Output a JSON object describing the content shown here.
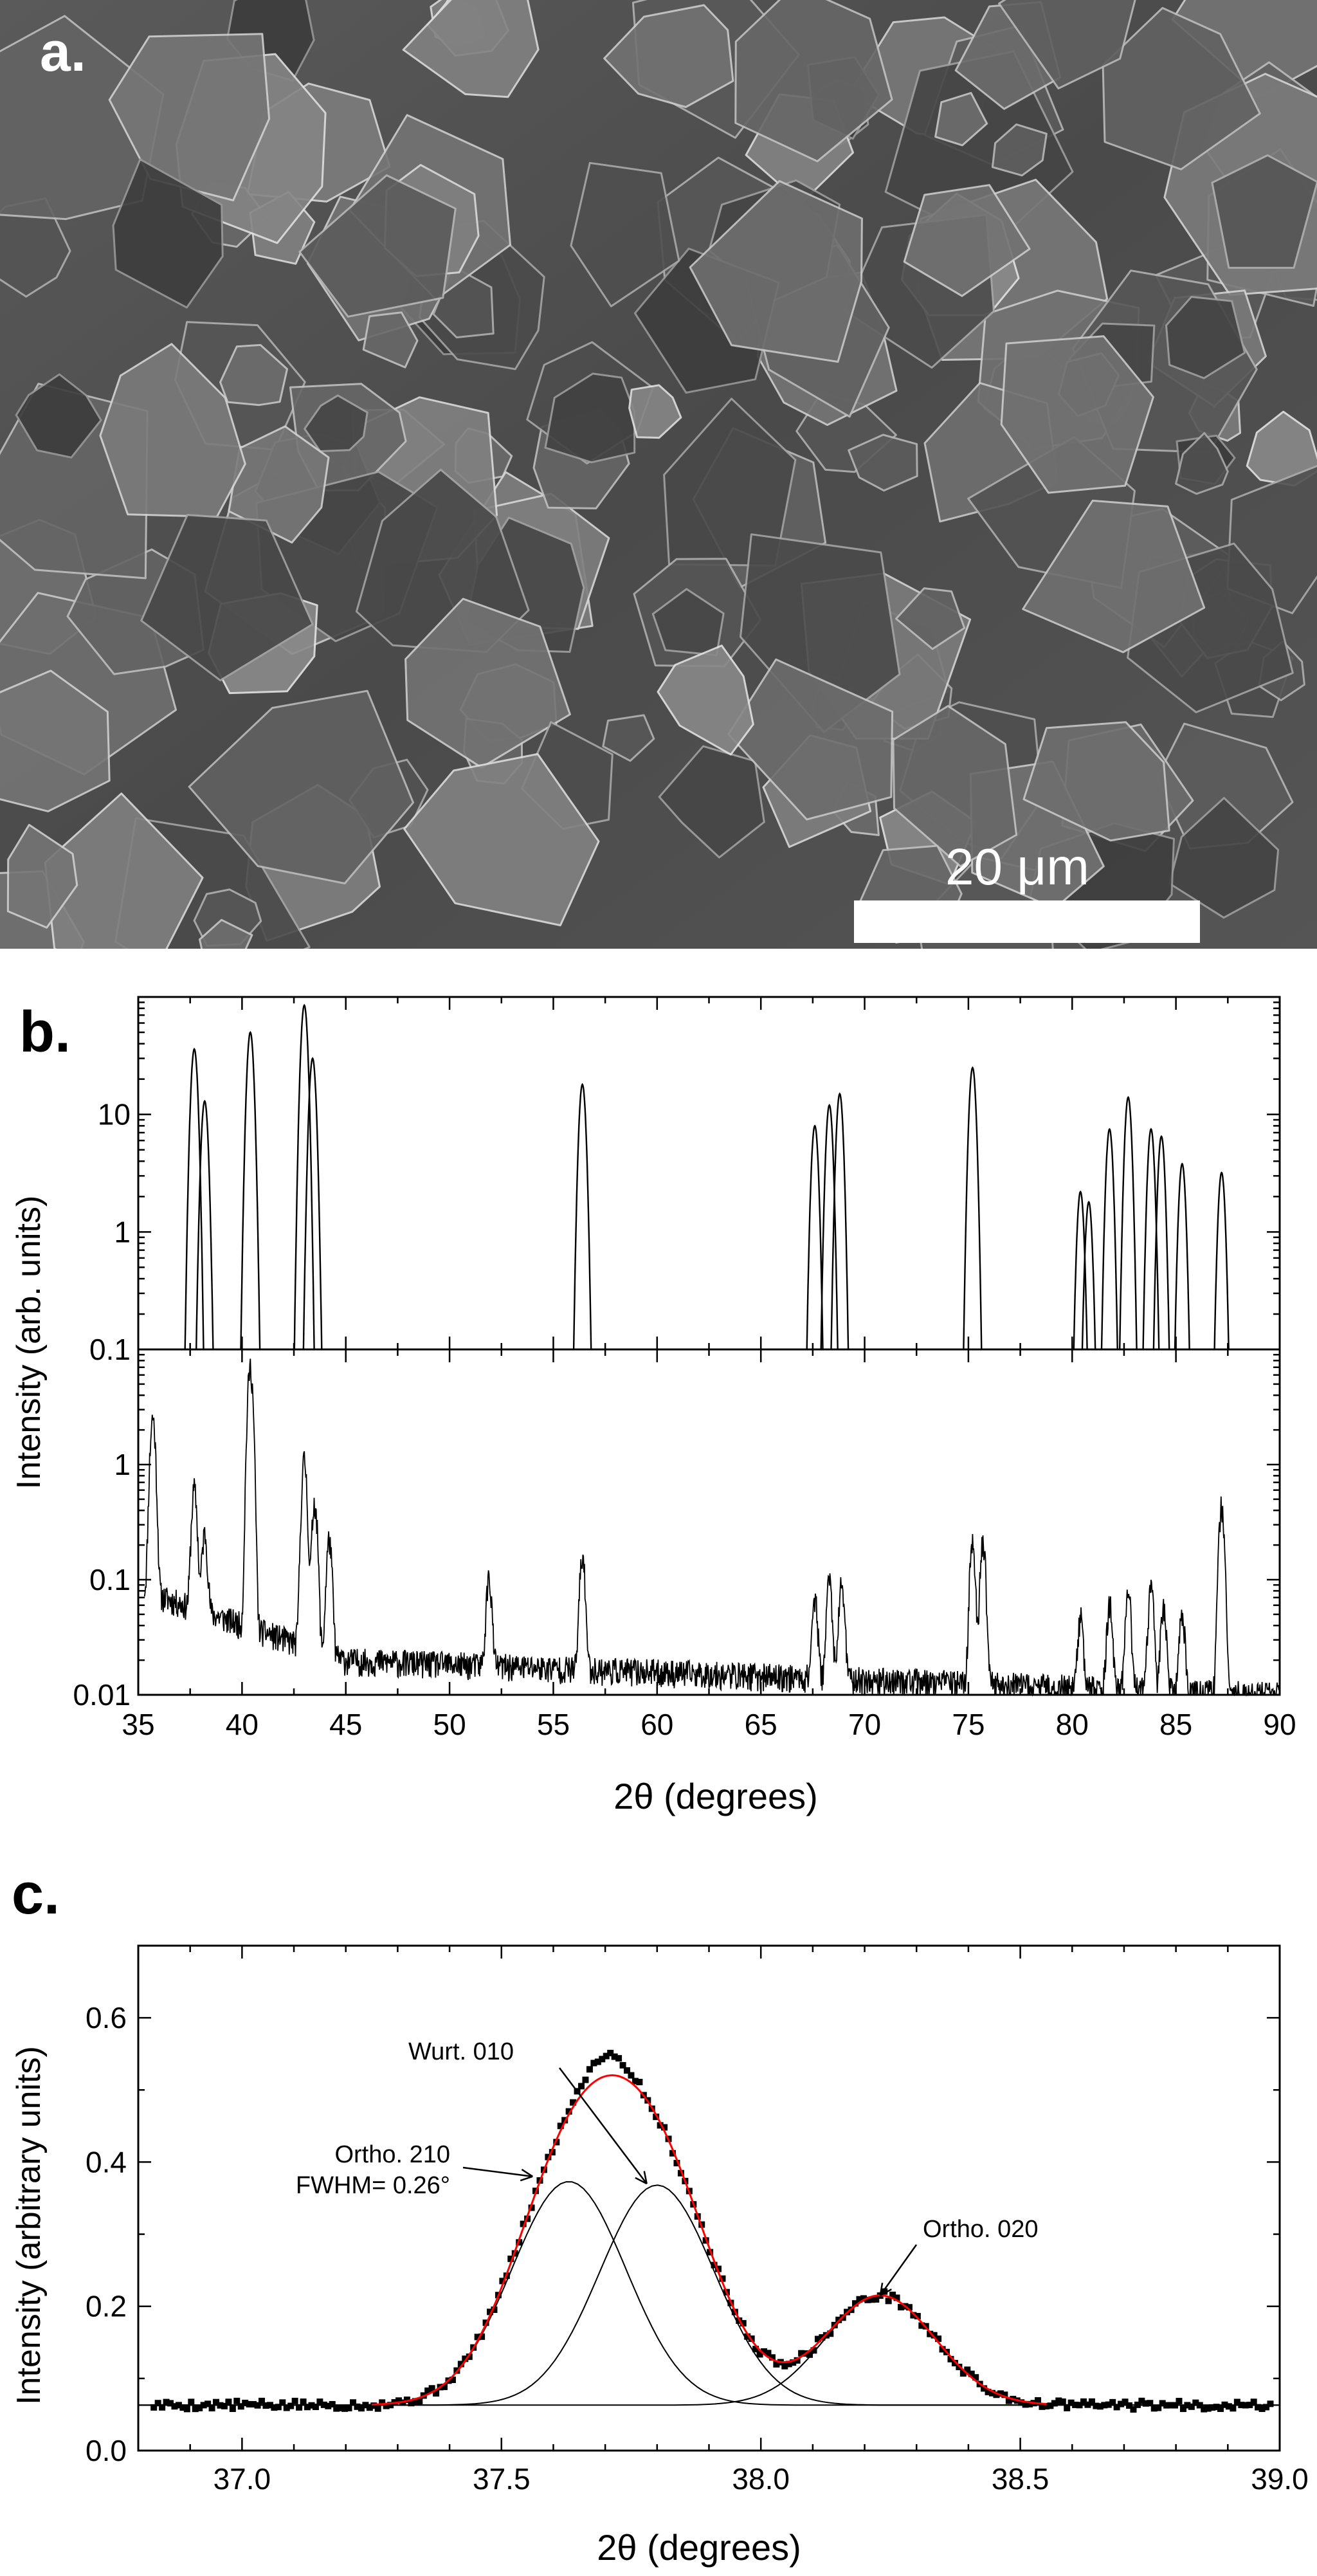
{
  "panel_a": {
    "label": "a.",
    "scale_bar_label": "20 μm",
    "image_kind": "sem-micrograph"
  },
  "chart_data": [
    {
      "panel_label": "b.",
      "type": "line",
      "ylabel": "Intensity (arb. units)",
      "xlabel": "2θ (degrees)",
      "xlim": [
        35,
        90
      ],
      "x_ticks": [
        "35",
        "40",
        "45",
        "50",
        "55",
        "60",
        "65",
        "70",
        "75",
        "80",
        "85",
        "90"
      ],
      "subplots": [
        {
          "name": "top",
          "yscale": "log",
          "ylim": [
            0.1,
            100
          ],
          "y_ticks": [
            "0.1",
            "1",
            "10"
          ],
          "series": [
            {
              "style": "simulated-peaks",
              "peaks": [
                [
                  37.7,
                  36
                ],
                [
                  38.2,
                  13
                ],
                [
                  40.4,
                  50
                ],
                [
                  43.0,
                  85
                ],
                [
                  43.4,
                  30
                ],
                [
                  56.4,
                  18
                ],
                [
                  67.6,
                  8
                ],
                [
                  68.3,
                  12
                ],
                [
                  68.8,
                  15
                ],
                [
                  75.2,
                  25
                ],
                [
                  80.4,
                  2.2
                ],
                [
                  80.8,
                  1.8
                ],
                [
                  81.8,
                  7.5
                ],
                [
                  82.7,
                  14
                ],
                [
                  83.8,
                  7.5
                ],
                [
                  84.3,
                  6.5
                ],
                [
                  85.3,
                  3.8
                ],
                [
                  87.2,
                  3.2
                ]
              ]
            }
          ]
        },
        {
          "name": "bottom",
          "yscale": "log",
          "ylim": [
            0.01,
            10
          ],
          "y_ticks": [
            "0.01",
            "0.1",
            "1"
          ],
          "series": [
            {
              "style": "measured-noisy",
              "background": [
                [
                  35.3,
                  0.08
                ],
                [
                  45,
                  0.02
                ],
                [
                  90,
                  0.01
                ]
              ],
              "peaks": [
                [
                  35.7,
                  2.5
                ],
                [
                  37.7,
                  0.55
                ],
                [
                  38.2,
                  0.2
                ],
                [
                  40.4,
                  7.0
                ],
                [
                  43.0,
                  1.05
                ],
                [
                  43.5,
                  0.45
                ],
                [
                  44.2,
                  0.2
                ],
                [
                  51.9,
                  0.085
                ],
                [
                  56.4,
                  0.14
                ],
                [
                  67.6,
                  0.055
                ],
                [
                  68.3,
                  0.085
                ],
                [
                  68.9,
                  0.08
                ],
                [
                  75.2,
                  0.2
                ],
                [
                  75.7,
                  0.2
                ],
                [
                  80.4,
                  0.035
                ],
                [
                  81.8,
                  0.05
                ],
                [
                  82.7,
                  0.07
                ],
                [
                  83.8,
                  0.075
                ],
                [
                  84.4,
                  0.05
                ],
                [
                  85.3,
                  0.04
                ],
                [
                  87.2,
                  0.43
                ]
              ]
            }
          ]
        }
      ]
    },
    {
      "panel_label": "c.",
      "type": "scatter",
      "xlabel": "2θ (degrees)",
      "ylabel": "Intensity (arbitrary units)",
      "xlim": [
        36.8,
        39.0
      ],
      "ylim": [
        0.0,
        0.7
      ],
      "x_ticks": [
        "37.0",
        "37.5",
        "38.0",
        "38.5",
        "39.0"
      ],
      "y_ticks": [
        "0.0",
        "0.2",
        "0.4",
        "0.6"
      ],
      "baseline": 0.063,
      "component_peaks": [
        {
          "center": 37.63,
          "height": 0.31,
          "fwhm": 0.26
        },
        {
          "center": 37.8,
          "height": 0.305,
          "fwhm": 0.26
        },
        {
          "center": 38.23,
          "height": 0.152,
          "fwhm": 0.25
        }
      ],
      "fit_color": "#ff0000",
      "annotations": [
        {
          "text": "Wurt. 010",
          "x": 37.78,
          "y": 0.37
        },
        {
          "text": "Ortho. 210",
          "x": 37.56,
          "y": 0.38
        },
        {
          "text": "FWHM= 0.26°",
          "x": 37.56,
          "y": 0.38
        },
        {
          "text": "Ortho. 020",
          "x": 38.23,
          "y": 0.215
        }
      ]
    }
  ]
}
